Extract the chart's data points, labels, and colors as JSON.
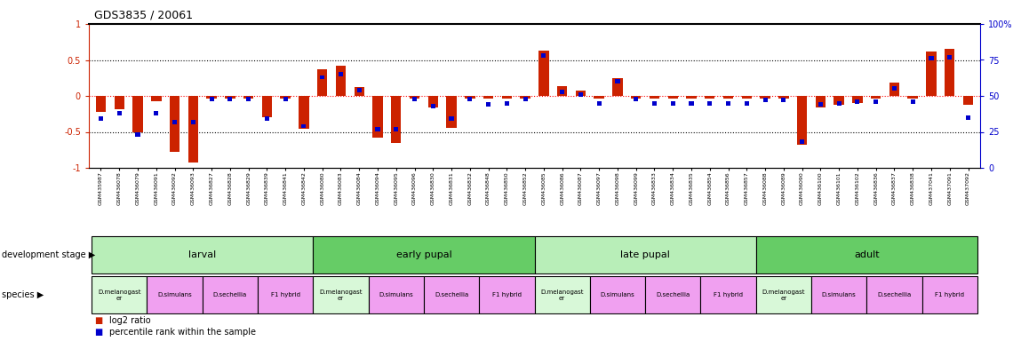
{
  "title": "GDS3835 / 20061",
  "samples": [
    "GSM435987",
    "GSM436078",
    "GSM436079",
    "GSM436091",
    "GSM436092",
    "GSM436093",
    "GSM436827",
    "GSM436828",
    "GSM436829",
    "GSM436839",
    "GSM436841",
    "GSM436842",
    "GSM436080",
    "GSM436083",
    "GSM436084",
    "GSM436094",
    "GSM436095",
    "GSM436096",
    "GSM436830",
    "GSM436831",
    "GSM436832",
    "GSM436848",
    "GSM436850",
    "GSM436852",
    "GSM436085",
    "GSM436086",
    "GSM436087",
    "GSM436097",
    "GSM436098",
    "GSM436099",
    "GSM436833",
    "GSM436834",
    "GSM436835",
    "GSM436854",
    "GSM436856",
    "GSM436857",
    "GSM436088",
    "GSM436089",
    "GSM436090",
    "GSM436100",
    "GSM436101",
    "GSM436102",
    "GSM436836",
    "GSM436837",
    "GSM436838",
    "GSM437041",
    "GSM437091",
    "GSM437092"
  ],
  "log2_ratio": [
    -0.22,
    -0.18,
    -0.5,
    -0.08,
    -0.78,
    -0.92,
    -0.04,
    -0.04,
    -0.04,
    -0.3,
    -0.04,
    -0.46,
    0.37,
    0.42,
    0.12,
    -0.58,
    -0.65,
    -0.04,
    -0.16,
    -0.44,
    -0.04,
    -0.04,
    -0.04,
    -0.04,
    0.63,
    0.13,
    0.07,
    -0.04,
    0.25,
    -0.04,
    -0.04,
    -0.04,
    -0.04,
    -0.04,
    -0.04,
    -0.04,
    -0.04,
    -0.04,
    -0.68,
    -0.16,
    -0.12,
    -0.1,
    -0.04,
    0.18,
    -0.04,
    0.62,
    0.65,
    -0.12
  ],
  "percentile": [
    34,
    38,
    23,
    38,
    32,
    32,
    48,
    48,
    48,
    34,
    48,
    29,
    63,
    65,
    54,
    27,
    27,
    48,
    43,
    34,
    48,
    44,
    45,
    48,
    78,
    53,
    51,
    45,
    60,
    48,
    45,
    45,
    45,
    45,
    45,
    45,
    47,
    47,
    18,
    44,
    45,
    46,
    46,
    55,
    46,
    76,
    77,
    35
  ],
  "dev_stages": [
    {
      "label": "larval",
      "start": 0,
      "end": 12
    },
    {
      "label": "early pupal",
      "start": 12,
      "end": 24
    },
    {
      "label": "late pupal",
      "start": 24,
      "end": 36
    },
    {
      "label": "adult",
      "start": 36,
      "end": 48
    }
  ],
  "species_groups": [
    {
      "label": "D.melanogast\ner",
      "start": 0,
      "end": 3
    },
    {
      "label": "D.simulans",
      "start": 3,
      "end": 6
    },
    {
      "label": "D.sechellia",
      "start": 6,
      "end": 9
    },
    {
      "label": "F1 hybrid",
      "start": 9,
      "end": 12
    },
    {
      "label": "D.melanogast\ner",
      "start": 12,
      "end": 15
    },
    {
      "label": "D.simulans",
      "start": 15,
      "end": 18
    },
    {
      "label": "D.sechellia",
      "start": 18,
      "end": 21
    },
    {
      "label": "F1 hybrid",
      "start": 21,
      "end": 24
    },
    {
      "label": "D.melanogast\ner",
      "start": 24,
      "end": 27
    },
    {
      "label": "D.simulans",
      "start": 27,
      "end": 30
    },
    {
      "label": "D.sechellia",
      "start": 30,
      "end": 33
    },
    {
      "label": "F1 hybrid",
      "start": 33,
      "end": 36
    },
    {
      "label": "D.melanogast\ner",
      "start": 36,
      "end": 39
    },
    {
      "label": "D.simulans",
      "start": 39,
      "end": 42
    },
    {
      "label": "D.sechellia",
      "start": 42,
      "end": 45
    },
    {
      "label": "F1 hybrid",
      "start": 45,
      "end": 48
    }
  ],
  "ylim": [
    -1.0,
    1.0
  ],
  "bar_width": 0.55,
  "red_color": "#cc2200",
  "blue_color": "#0000cc",
  "dev_color_light": "#b8eeb8",
  "dev_color_dark": "#66cc66",
  "species_mel_color": "#d8f8d8",
  "species_other_color": "#f0a0f0"
}
